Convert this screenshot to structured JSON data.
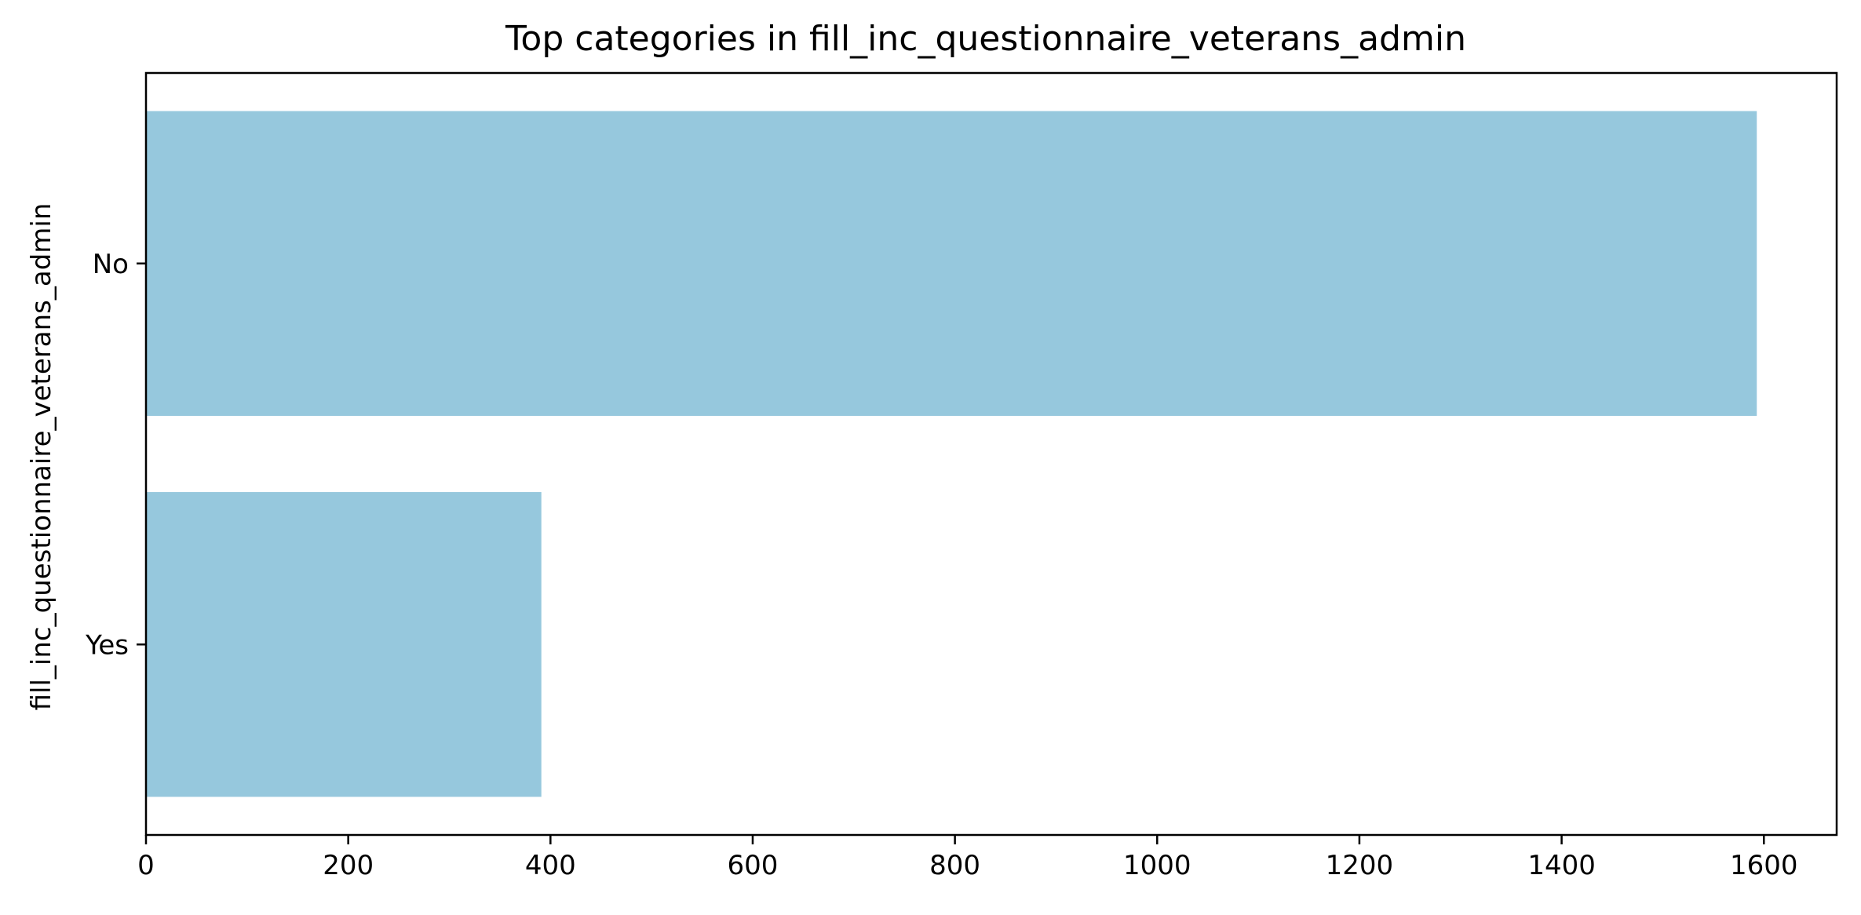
{
  "chart_data": {
    "type": "bar",
    "orientation": "horizontal",
    "title": "Top categories in fill_inc_questionnaire_veterans_admin",
    "xlabel": "",
    "ylabel": "fill_inc_questionnaire_veterans_admin",
    "categories": [
      "No",
      "Yes"
    ],
    "values": [
      1593,
      391
    ],
    "xlim": [
      0,
      1672
    ],
    "xticks": [
      0,
      200,
      400,
      600,
      800,
      1000,
      1200,
      1400,
      1600
    ],
    "bar_color": "#96c8dd",
    "grid": false,
    "legend": "none"
  }
}
